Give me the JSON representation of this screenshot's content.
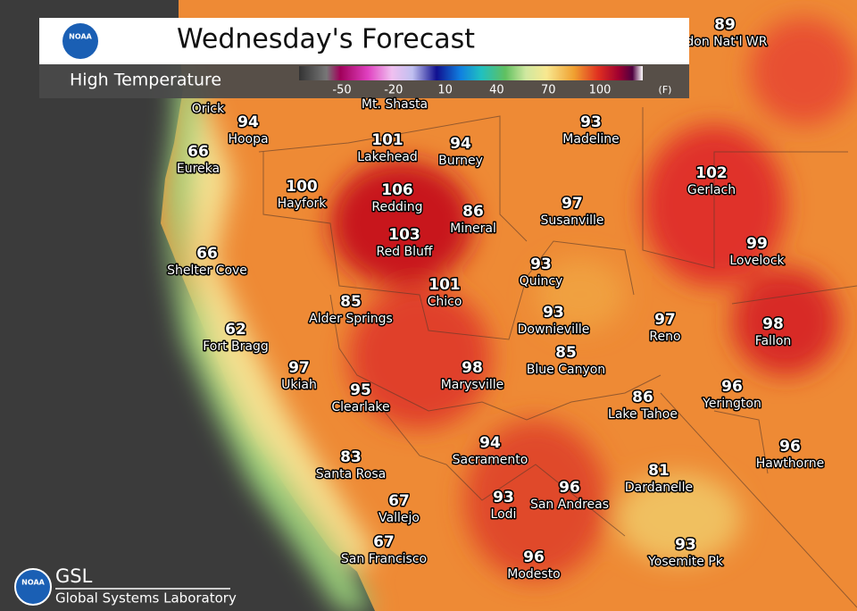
{
  "header": {
    "title": "Wednesday's Forecast",
    "subtitle": "High Temperature",
    "logo": "NOAA"
  },
  "legend": {
    "ticks": [
      -50,
      -20,
      10,
      40,
      70,
      100
    ],
    "unit": "(F)"
  },
  "cities": [
    {
      "name": "ldon Nat'l WR",
      "temp": 89
    },
    {
      "name": "Orick"
    },
    {
      "name": "Mt. Shasta"
    },
    {
      "name": "Hoopa",
      "temp": 94
    },
    {
      "name": "Eureka",
      "temp": 66
    },
    {
      "name": "Lakehead",
      "temp": 101
    },
    {
      "name": "Burney",
      "temp": 94
    },
    {
      "name": "Madeline",
      "temp": 93
    },
    {
      "name": "Gerlach",
      "temp": 102
    },
    {
      "name": "Hayfork",
      "temp": 100
    },
    {
      "name": "Redding",
      "temp": 106
    },
    {
      "name": "Mineral",
      "temp": 86
    },
    {
      "name": "Susanville",
      "temp": 97
    },
    {
      "name": "Red Bluff",
      "temp": 103
    },
    {
      "name": "Lovelock",
      "temp": 99
    },
    {
      "name": "Shelter Cove",
      "temp": 66
    },
    {
      "name": "Quincy",
      "temp": 93
    },
    {
      "name": "Chico",
      "temp": 101
    },
    {
      "name": "Alder Springs",
      "temp": 85
    },
    {
      "name": "Downieville",
      "temp": 93
    },
    {
      "name": "Fort Bragg",
      "temp": 62
    },
    {
      "name": "Reno",
      "temp": 97
    },
    {
      "name": "Fallon",
      "temp": 98
    },
    {
      "name": "Blue Canyon",
      "temp": 85
    },
    {
      "name": "Ukiah",
      "temp": 97
    },
    {
      "name": "Marysville",
      "temp": 98
    },
    {
      "name": "Clearlake",
      "temp": 95
    },
    {
      "name": "Lake Tahoe",
      "temp": 86
    },
    {
      "name": "Yerington",
      "temp": 96
    },
    {
      "name": "Sacramento",
      "temp": 94
    },
    {
      "name": "Hawthorne",
      "temp": 96
    },
    {
      "name": "Santa Rosa",
      "temp": 83
    },
    {
      "name": "Dardanelle",
      "temp": 81
    },
    {
      "name": "Lodi",
      "temp": 93
    },
    {
      "name": "San Andreas",
      "temp": 96
    },
    {
      "name": "Vallejo",
      "temp": 67
    },
    {
      "name": "San Francisco",
      "temp": 67
    },
    {
      "name": "Modesto",
      "temp": 96
    },
    {
      "name": "Yosemite Pk",
      "temp": 93
    }
  ],
  "footer": {
    "logo": "NOAA",
    "lab_short": "GSL",
    "lab_name": "Global Systems Laboratory"
  }
}
